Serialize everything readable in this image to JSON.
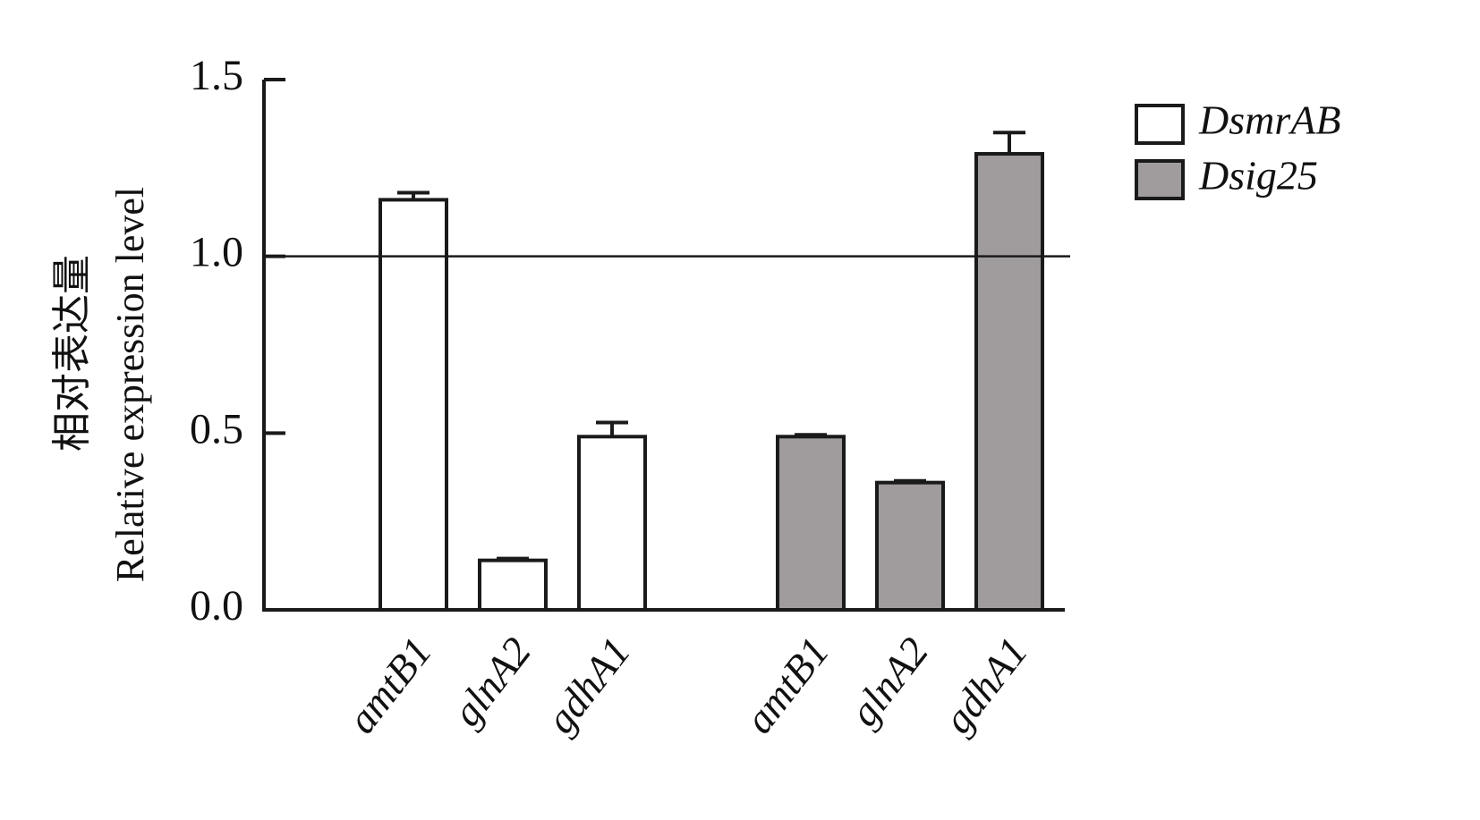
{
  "chart_data": {
    "type": "bar",
    "ylabel": [
      "相对表达量",
      "Relative expression level"
    ],
    "categories": [
      "amtB1",
      "glnA2",
      "gdhA1",
      "amtB1",
      "glnA2",
      "gdhA1"
    ],
    "series": [
      {
        "name": "DsmrAB",
        "color": "#ffffff",
        "values": [
          1.16,
          0.14,
          0.49,
          null,
          null,
          null
        ],
        "errors": [
          0.02,
          0.005,
          0.04,
          null,
          null,
          null
        ]
      },
      {
        "name": "Dsig25",
        "color": "#a09b9c",
        "values": [
          null,
          null,
          null,
          0.49,
          0.36,
          1.29
        ],
        "errors": [
          null,
          null,
          null,
          0.005,
          0.005,
          0.06
        ]
      }
    ],
    "reference_line": 1,
    "ylim": [
      0,
      1.5
    ],
    "yticks": [
      {
        "value": 0,
        "label": "0.0"
      },
      0.5,
      {
        "value": 1,
        "label": "1.0"
      },
      1.5
    ],
    "legend": "top-right",
    "grid": false
  }
}
